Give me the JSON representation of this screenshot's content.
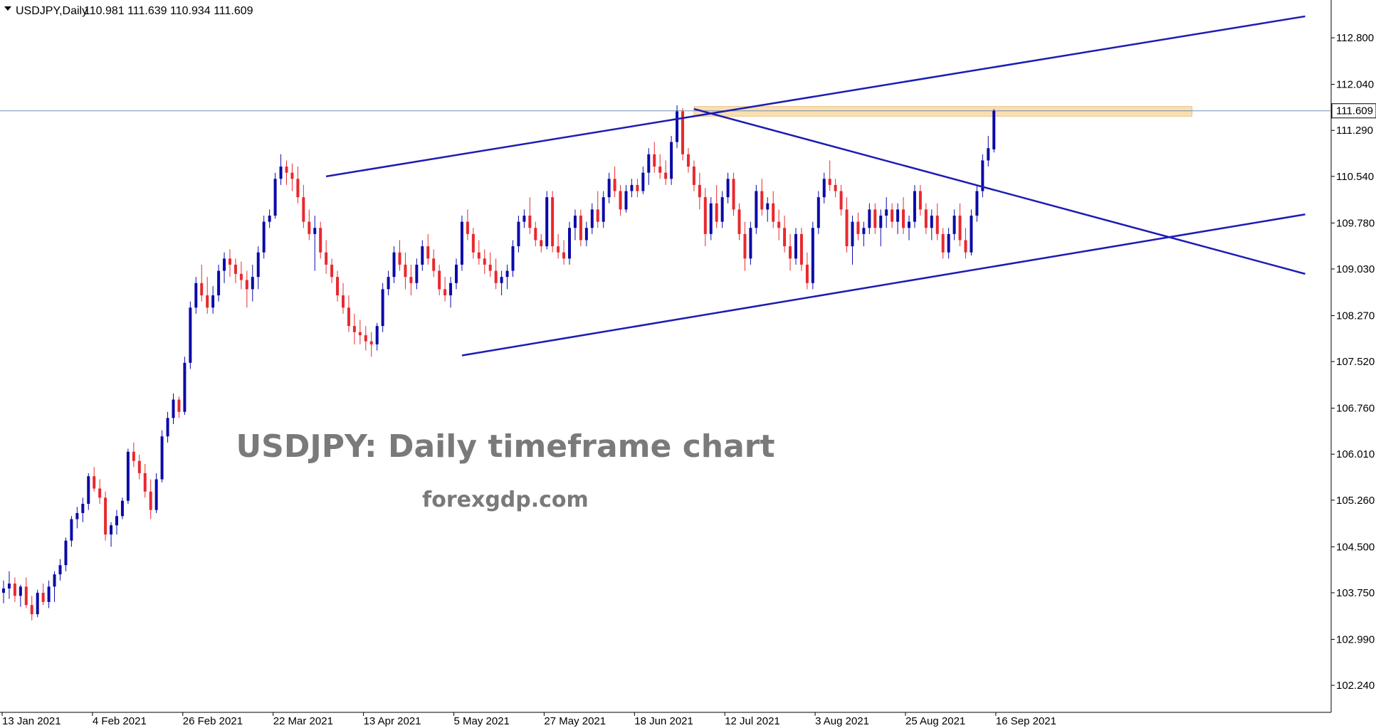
{
  "header": {
    "symbol": "USDJPY,Daily",
    "ohlc": "110.981 111.639 110.934 111.609"
  },
  "watermark": {
    "title": "USDJPY: Daily timeframe chart",
    "site": "forexgdp.com"
  },
  "colors": {
    "bull": "#0a0aa8",
    "bear": "#e8292e",
    "trendline": "#1c1cb4",
    "zone": "#f8d9a4",
    "price_line": "#6f8fb0",
    "axis": "#000000"
  },
  "chart_data": {
    "type": "candlestick",
    "title": "USDJPY: Daily timeframe chart",
    "ylim": [
      101.8,
      113.3
    ],
    "y_ticks": [
      "112.800",
      "112.040",
      "111.290",
      "110.540",
      "109.780",
      "109.030",
      "108.270",
      "107.520",
      "106.760",
      "106.010",
      "105.260",
      "104.500",
      "103.750",
      "102.990",
      "102.240"
    ],
    "x_ticks": [
      "13 Jan 2021",
      "4 Feb 2021",
      "26 Feb 2021",
      "22 Mar 2021",
      "13 Apr 2021",
      "5 May 2021",
      "27 May 2021",
      "18 Jun 2021",
      "12 Jul 2021",
      "3 Aug 2021",
      "25 Aug 2021",
      "16 Sep 2021"
    ],
    "last_price": "111.609",
    "ohlc": [
      [
        103.75,
        103.95,
        103.58,
        103.82
      ],
      [
        103.82,
        104.1,
        103.65,
        103.9
      ],
      [
        103.9,
        104.0,
        103.6,
        103.7
      ],
      [
        103.7,
        103.88,
        103.52,
        103.85
      ],
      [
        103.85,
        104.0,
        103.5,
        103.55
      ],
      [
        103.55,
        103.7,
        103.3,
        103.4
      ],
      [
        103.4,
        103.8,
        103.35,
        103.75
      ],
      [
        103.75,
        103.9,
        103.55,
        103.6
      ],
      [
        103.6,
        103.95,
        103.5,
        103.85
      ],
      [
        103.85,
        104.1,
        103.6,
        104.05
      ],
      [
        104.05,
        104.3,
        103.95,
        104.2
      ],
      [
        104.2,
        104.65,
        104.1,
        104.6
      ],
      [
        104.6,
        105.0,
        104.5,
        104.95
      ],
      [
        104.95,
        105.15,
        104.8,
        105.05
      ],
      [
        105.05,
        105.3,
        104.9,
        105.2
      ],
      [
        105.2,
        105.7,
        105.1,
        105.65
      ],
      [
        105.65,
        105.8,
        105.4,
        105.45
      ],
      [
        105.45,
        105.6,
        105.2,
        105.3
      ],
      [
        105.3,
        105.4,
        104.6,
        104.7
      ],
      [
        104.7,
        104.9,
        104.5,
        104.85
      ],
      [
        104.85,
        105.1,
        104.7,
        105.0
      ],
      [
        105.0,
        105.3,
        104.95,
        105.25
      ],
      [
        105.25,
        106.1,
        105.2,
        106.05
      ],
      [
        106.05,
        106.2,
        105.8,
        105.9
      ],
      [
        105.9,
        106.0,
        105.6,
        105.7
      ],
      [
        105.7,
        105.85,
        105.3,
        105.4
      ],
      [
        105.4,
        105.6,
        104.95,
        105.1
      ],
      [
        105.1,
        105.7,
        105.05,
        105.6
      ],
      [
        105.6,
        106.4,
        105.55,
        106.3
      ],
      [
        106.3,
        106.7,
        106.2,
        106.6
      ],
      [
        106.6,
        107.0,
        106.5,
        106.9
      ],
      [
        106.9,
        106.95,
        106.6,
        106.7
      ],
      [
        106.7,
        107.6,
        106.65,
        107.5
      ],
      [
        107.5,
        108.5,
        107.4,
        108.4
      ],
      [
        108.4,
        108.9,
        108.3,
        108.8
      ],
      [
        108.8,
        109.1,
        108.5,
        108.6
      ],
      [
        108.6,
        108.9,
        108.3,
        108.4
      ],
      [
        108.4,
        108.75,
        108.3,
        108.6
      ],
      [
        108.6,
        109.1,
        108.5,
        109.0
      ],
      [
        109.0,
        109.3,
        108.8,
        109.2
      ],
      [
        109.2,
        109.35,
        108.9,
        109.1
      ],
      [
        109.1,
        109.2,
        108.8,
        108.95
      ],
      [
        108.95,
        109.15,
        108.7,
        108.85
      ],
      [
        108.85,
        109.0,
        108.4,
        108.7
      ],
      [
        108.7,
        109.1,
        108.5,
        108.9
      ],
      [
        108.9,
        109.4,
        108.7,
        109.3
      ],
      [
        109.3,
        109.9,
        109.2,
        109.8
      ],
      [
        109.8,
        110.0,
        109.7,
        109.9
      ],
      [
        109.9,
        110.6,
        109.85,
        110.5
      ],
      [
        110.5,
        110.9,
        110.4,
        110.7
      ],
      [
        110.7,
        110.8,
        110.4,
        110.6
      ],
      [
        110.6,
        110.75,
        110.3,
        110.5
      ],
      [
        110.5,
        110.7,
        110.1,
        110.2
      ],
      [
        110.2,
        110.4,
        109.7,
        109.8
      ],
      [
        109.8,
        110.0,
        109.5,
        109.6
      ],
      [
        109.6,
        109.9,
        109.0,
        109.7
      ],
      [
        109.7,
        109.8,
        109.2,
        109.3
      ],
      [
        109.3,
        109.5,
        108.95,
        109.1
      ],
      [
        109.1,
        109.2,
        108.8,
        108.9
      ],
      [
        108.9,
        109.0,
        108.5,
        108.6
      ],
      [
        108.6,
        108.8,
        108.3,
        108.4
      ],
      [
        108.4,
        108.6,
        108.0,
        108.1
      ],
      [
        108.1,
        108.3,
        107.8,
        108.0
      ],
      [
        108.0,
        108.2,
        107.8,
        107.95
      ],
      [
        107.95,
        108.1,
        107.7,
        107.85
      ],
      [
        107.85,
        108.0,
        107.6,
        107.8
      ],
      [
        107.8,
        108.15,
        107.7,
        108.1
      ],
      [
        108.1,
        108.8,
        108.0,
        108.7
      ],
      [
        108.7,
        109.0,
        108.6,
        108.9
      ],
      [
        108.9,
        109.4,
        108.8,
        109.3
      ],
      [
        109.3,
        109.5,
        109.0,
        109.1
      ],
      [
        109.1,
        109.3,
        108.7,
        108.9
      ],
      [
        108.9,
        109.1,
        108.6,
        108.8
      ],
      [
        108.8,
        109.2,
        108.7,
        109.1
      ],
      [
        109.1,
        109.5,
        109.0,
        109.4
      ],
      [
        109.4,
        109.6,
        109.1,
        109.2
      ],
      [
        109.2,
        109.35,
        108.9,
        109.0
      ],
      [
        109.0,
        109.1,
        108.6,
        108.7
      ],
      [
        108.7,
        108.9,
        108.5,
        108.6
      ],
      [
        108.6,
        108.9,
        108.4,
        108.8
      ],
      [
        108.8,
        109.2,
        108.7,
        109.1
      ],
      [
        109.1,
        109.9,
        109.0,
        109.8
      ],
      [
        109.8,
        110.0,
        109.5,
        109.6
      ],
      [
        109.6,
        109.7,
        109.2,
        109.3
      ],
      [
        109.3,
        109.5,
        109.1,
        109.2
      ],
      [
        109.2,
        109.35,
        108.95,
        109.1
      ],
      [
        109.1,
        109.3,
        108.9,
        109.0
      ],
      [
        109.0,
        109.2,
        108.7,
        108.8
      ],
      [
        108.8,
        109.0,
        108.6,
        108.9
      ],
      [
        108.9,
        109.1,
        108.7,
        109.0
      ],
      [
        109.0,
        109.5,
        108.9,
        109.4
      ],
      [
        109.4,
        109.9,
        109.3,
        109.8
      ],
      [
        109.8,
        110.0,
        109.7,
        109.9
      ],
      [
        109.9,
        110.2,
        109.6,
        109.7
      ],
      [
        109.7,
        109.8,
        109.4,
        109.5
      ],
      [
        109.5,
        109.6,
        109.3,
        109.4
      ],
      [
        109.4,
        110.3,
        109.35,
        110.2
      ],
      [
        110.2,
        110.3,
        109.3,
        109.4
      ],
      [
        109.4,
        109.6,
        109.2,
        109.3
      ],
      [
        109.3,
        109.5,
        109.1,
        109.2
      ],
      [
        109.2,
        109.8,
        109.1,
        109.7
      ],
      [
        109.7,
        110.0,
        109.5,
        109.9
      ],
      [
        109.9,
        110.0,
        109.4,
        109.5
      ],
      [
        109.5,
        109.8,
        109.4,
        109.7
      ],
      [
        109.7,
        110.1,
        109.6,
        110.0
      ],
      [
        110.0,
        110.3,
        109.7,
        109.8
      ],
      [
        109.8,
        110.3,
        109.7,
        110.2
      ],
      [
        110.2,
        110.6,
        110.1,
        110.5
      ],
      [
        110.5,
        110.7,
        110.2,
        110.3
      ],
      [
        110.3,
        110.4,
        109.9,
        110.0
      ],
      [
        110.0,
        110.4,
        109.95,
        110.3
      ],
      [
        110.3,
        110.5,
        110.2,
        110.4
      ],
      [
        110.4,
        110.5,
        110.2,
        110.3
      ],
      [
        110.3,
        110.7,
        110.25,
        110.6
      ],
      [
        110.6,
        111.0,
        110.4,
        110.9
      ],
      [
        110.9,
        111.1,
        110.6,
        110.7
      ],
      [
        110.7,
        110.9,
        110.5,
        110.6
      ],
      [
        110.6,
        110.8,
        110.4,
        110.5
      ],
      [
        110.5,
        111.2,
        110.4,
        111.1
      ],
      [
        111.1,
        111.7,
        111.0,
        111.6
      ],
      [
        111.6,
        111.65,
        110.8,
        110.9
      ],
      [
        110.9,
        111.0,
        110.6,
        110.7
      ],
      [
        110.7,
        110.8,
        110.3,
        110.4
      ],
      [
        110.4,
        110.6,
        110.0,
        110.2
      ],
      [
        110.2,
        110.35,
        109.4,
        109.6
      ],
      [
        109.6,
        110.2,
        109.5,
        110.1
      ],
      [
        110.1,
        110.4,
        109.7,
        109.8
      ],
      [
        109.8,
        110.3,
        109.7,
        110.2
      ],
      [
        110.2,
        110.6,
        110.1,
        110.5
      ],
      [
        110.5,
        110.6,
        109.9,
        110.0
      ],
      [
        110.0,
        110.1,
        109.5,
        109.6
      ],
      [
        109.6,
        109.8,
        109.0,
        109.2
      ],
      [
        109.2,
        109.8,
        109.1,
        109.7
      ],
      [
        109.7,
        110.4,
        109.6,
        110.3
      ],
      [
        110.3,
        110.5,
        109.9,
        110.0
      ],
      [
        110.0,
        110.2,
        109.8,
        110.1
      ],
      [
        110.1,
        110.3,
        109.7,
        109.8
      ],
      [
        109.8,
        110.0,
        109.5,
        109.7
      ],
      [
        109.7,
        109.9,
        109.3,
        109.4
      ],
      [
        109.4,
        109.6,
        109.0,
        109.2
      ],
      [
        109.2,
        109.7,
        109.1,
        109.6
      ],
      [
        109.6,
        109.7,
        109.0,
        109.1
      ],
      [
        109.1,
        109.3,
        108.7,
        108.8
      ],
      [
        108.8,
        109.8,
        108.7,
        109.7
      ],
      [
        109.7,
        110.3,
        109.6,
        110.2
      ],
      [
        110.2,
        110.6,
        110.1,
        110.5
      ],
      [
        110.5,
        110.8,
        110.3,
        110.4
      ],
      [
        110.4,
        110.5,
        110.2,
        110.3
      ],
      [
        110.3,
        110.4,
        109.9,
        110.0
      ],
      [
        110.0,
        110.2,
        109.3,
        109.4
      ],
      [
        109.4,
        109.9,
        109.1,
        109.8
      ],
      [
        109.8,
        109.95,
        109.5,
        109.6
      ],
      [
        109.6,
        109.8,
        109.4,
        109.7
      ],
      [
        109.7,
        110.1,
        109.6,
        110.0
      ],
      [
        110.0,
        110.1,
        109.6,
        109.7
      ],
      [
        109.7,
        110.0,
        109.4,
        109.9
      ],
      [
        109.9,
        110.2,
        109.7,
        110.0
      ],
      [
        110.0,
        110.1,
        109.7,
        109.8
      ],
      [
        109.8,
        110.1,
        109.6,
        110.0
      ],
      [
        110.0,
        110.2,
        109.6,
        109.7
      ],
      [
        109.7,
        109.9,
        109.5,
        109.8
      ],
      [
        109.8,
        110.4,
        109.7,
        110.3
      ],
      [
        110.3,
        110.4,
        109.9,
        110.0
      ],
      [
        110.0,
        110.1,
        109.6,
        109.7
      ],
      [
        109.7,
        110.0,
        109.5,
        109.9
      ],
      [
        109.9,
        110.1,
        109.5,
        109.6
      ],
      [
        109.6,
        109.7,
        109.2,
        109.3
      ],
      [
        109.3,
        109.7,
        109.2,
        109.6
      ],
      [
        109.6,
        110.0,
        109.5,
        109.9
      ],
      [
        109.9,
        110.1,
        109.4,
        109.5
      ],
      [
        109.5,
        109.7,
        109.2,
        109.3
      ],
      [
        109.3,
        110.0,
        109.25,
        109.9
      ],
      [
        109.9,
        110.4,
        109.8,
        110.3
      ],
      [
        110.3,
        110.9,
        110.2,
        110.8
      ],
      [
        110.8,
        111.2,
        110.7,
        111.0
      ],
      [
        110.98,
        111.64,
        110.93,
        111.61
      ]
    ],
    "trendlines": [
      {
        "name": "upper channel",
        "from": [
          57,
          110.54
        ],
        "to": [
          230,
          113.15
        ]
      },
      {
        "name": "lower channel",
        "from": [
          81,
          107.62
        ],
        "to": [
          230,
          109.92
        ]
      },
      {
        "name": "descending resistance",
        "from": [
          122,
          111.64
        ],
        "to": [
          230,
          108.95
        ]
      }
    ],
    "zone": {
      "from": 122,
      "to": 210,
      "low": 111.52,
      "high": 111.68
    }
  }
}
